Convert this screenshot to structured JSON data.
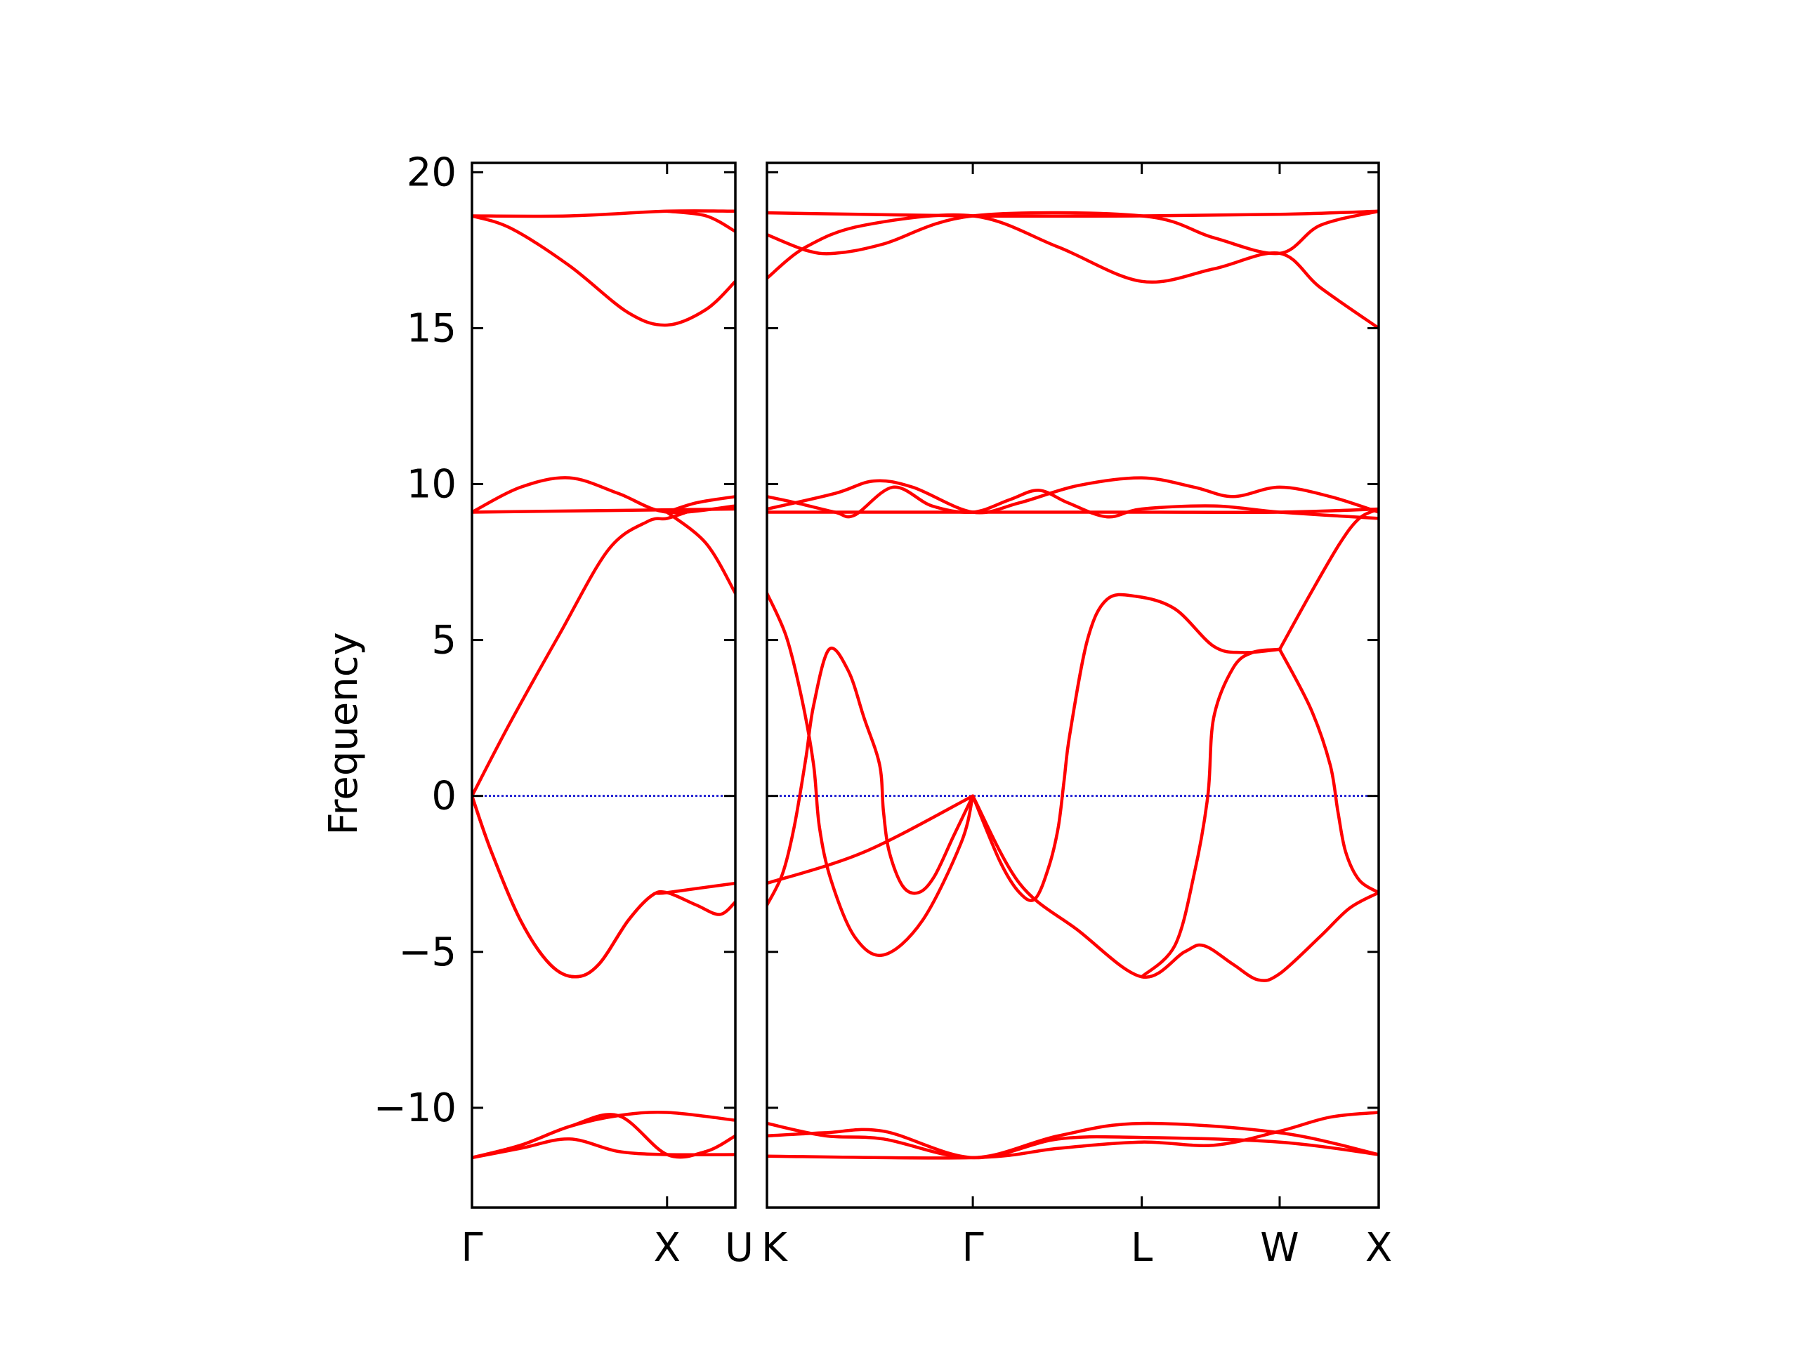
{
  "chart_data": {
    "type": "line",
    "title": "",
    "xlabel": "",
    "ylabel": "Frequency",
    "ylim": [
      -13.2,
      20.3
    ],
    "yticks": [
      -10,
      -5,
      0,
      5,
      10,
      15,
      20
    ],
    "ytick_labels": [
      "−10",
      "−5",
      "0",
      "5",
      "10",
      "15",
      "20"
    ],
    "grid": false,
    "legend": "none",
    "colors": {
      "bands": "#ff0000",
      "zero_line": "#0000cc",
      "axes": "#000000"
    },
    "panels": [
      {
        "name": "gamma-x-u",
        "x_range": [
          0,
          1.35
        ],
        "ticks": [
          {
            "x": 0,
            "label": "Γ"
          },
          {
            "x": 1.0,
            "label": "X"
          },
          {
            "x": 1.35,
            "label": "U"
          }
        ],
        "bands": [
          [
            [
              0,
              -11.6
            ],
            [
              0.25,
              -11.3
            ],
            [
              0.5,
              -11.0
            ],
            [
              0.75,
              -11.4
            ],
            [
              1.0,
              -11.5
            ],
            [
              1.35,
              -11.5
            ]
          ],
          [
            [
              0,
              -11.6
            ],
            [
              0.25,
              -11.2
            ],
            [
              0.5,
              -10.6
            ],
            [
              0.75,
              -10.25
            ],
            [
              1.0,
              -10.15
            ],
            [
              1.35,
              -10.4
            ]
          ],
          [
            [
              0,
              -11.6
            ],
            [
              0.25,
              -11.2
            ],
            [
              0.5,
              -10.6
            ],
            [
              0.75,
              -10.25
            ],
            [
              1.0,
              -11.5
            ],
            [
              1.2,
              -11.4
            ],
            [
              1.35,
              -10.9
            ]
          ],
          [
            [
              0,
              0
            ],
            [
              0.1,
              -1.8
            ],
            [
              0.25,
              -4.0
            ],
            [
              0.4,
              -5.4
            ],
            [
              0.53,
              -5.8
            ],
            [
              0.65,
              -5.4
            ],
            [
              0.8,
              -4.0
            ],
            [
              0.92,
              -3.2
            ],
            [
              1.0,
              -3.1
            ],
            [
              1.35,
              -2.8
            ]
          ],
          [
            [
              0,
              0
            ],
            [
              0.1,
              -1.8
            ],
            [
              0.25,
              -4.0
            ],
            [
              0.4,
              -5.4
            ],
            [
              0.53,
              -5.8
            ],
            [
              0.65,
              -5.4
            ],
            [
              0.8,
              -4.0
            ],
            [
              0.92,
              -3.2
            ],
            [
              1.0,
              -3.1
            ],
            [
              1.15,
              -3.5
            ],
            [
              1.27,
              -3.8
            ],
            [
              1.35,
              -3.4
            ]
          ],
          [
            [
              0,
              0
            ],
            [
              0.2,
              2.4
            ],
            [
              0.45,
              5.2
            ],
            [
              0.7,
              7.9
            ],
            [
              0.9,
              8.8
            ],
            [
              1.0,
              8.9
            ],
            [
              1.1,
              9.1
            ]
          ],
          [
            [
              0,
              9.1
            ],
            [
              1.35,
              9.2
            ]
          ],
          [
            [
              0,
              9.1
            ],
            [
              0.25,
              9.9
            ],
            [
              0.5,
              10.2
            ],
            [
              0.75,
              9.7
            ],
            [
              1.0,
              9.1
            ],
            [
              1.35,
              9.3
            ]
          ],
          [
            [
              1.0,
              9.1
            ],
            [
              1.15,
              9.4
            ],
            [
              1.35,
              9.6
            ]
          ],
          [
            [
              1.0,
              9.1
            ],
            [
              1.2,
              8.1
            ],
            [
              1.35,
              6.5
            ]
          ],
          [
            [
              0,
              18.6
            ],
            [
              0.5,
              18.6
            ],
            [
              1.0,
              18.75
            ],
            [
              1.35,
              18.75
            ]
          ],
          [
            [
              0,
              18.6
            ],
            [
              0.2,
              18.2
            ],
            [
              0.5,
              17.0
            ],
            [
              0.8,
              15.5
            ],
            [
              1.0,
              15.1
            ],
            [
              1.2,
              15.6
            ],
            [
              1.35,
              16.5
            ]
          ],
          [
            [
              1.0,
              18.75
            ],
            [
              1.2,
              18.6
            ],
            [
              1.35,
              18.1
            ]
          ]
        ]
      },
      {
        "name": "k-gamma-l-w-x",
        "x_range": [
          0,
          3.15
        ],
        "ticks": [
          {
            "x": 0,
            "label": "K"
          },
          {
            "x": 1.06,
            "label": "Γ"
          },
          {
            "x": 1.93,
            "label": "L"
          },
          {
            "x": 2.64,
            "label": "W"
          },
          {
            "x": 3.15,
            "label": "X"
          }
        ],
        "bands": [
          [
            [
              0,
              -11.55
            ],
            [
              1.06,
              -11.6
            ],
            [
              1.5,
              -11.3
            ],
            [
              1.93,
              -11.1
            ],
            [
              2.3,
              -11.2
            ],
            [
              2.64,
              -10.75
            ],
            [
              2.9,
              -10.3
            ],
            [
              3.15,
              -10.15
            ]
          ],
          [
            [
              0,
              -10.5
            ],
            [
              0.3,
              -10.9
            ],
            [
              0.6,
              -11.0
            ],
            [
              1.06,
              -11.6
            ],
            [
              1.5,
              -10.9
            ],
            [
              1.93,
              -10.5
            ],
            [
              2.64,
              -10.8
            ],
            [
              3.15,
              -11.5
            ]
          ],
          [
            [
              0,
              -10.9
            ],
            [
              0.3,
              -10.8
            ],
            [
              0.6,
              -10.75
            ],
            [
              1.06,
              -11.6
            ],
            [
              1.5,
              -11.0
            ],
            [
              1.93,
              -10.95
            ],
            [
              2.64,
              -11.1
            ],
            [
              3.15,
              -11.5
            ]
          ],
          [
            [
              0,
              -2.8
            ],
            [
              0.5,
              -1.8
            ],
            [
              1.06,
              0
            ]
          ],
          [
            [
              0,
              -3.5
            ],
            [
              0.08,
              -2.5
            ],
            [
              0.14,
              -1.0
            ],
            [
              0.2,
              1.2
            ],
            [
              0.24,
              2.9
            ],
            [
              0.32,
              4.7
            ],
            [
              0.42,
              4.0
            ],
            [
              0.5,
              2.5
            ],
            [
              0.58,
              1.0
            ],
            [
              0.6,
              -0.5
            ],
            [
              0.63,
              -1.8
            ],
            [
              0.7,
              -2.9
            ],
            [
              0.78,
              -3.1
            ],
            [
              0.86,
              -2.6
            ],
            [
              0.96,
              -1.3
            ],
            [
              1.06,
              0
            ]
          ],
          [
            [
              0,
              6.5
            ],
            [
              0.1,
              5.1
            ],
            [
              0.18,
              3.1
            ],
            [
              0.24,
              1.0
            ],
            [
              0.27,
              -1.0
            ],
            [
              0.33,
              -2.7
            ],
            [
              0.45,
              -4.5
            ],
            [
              0.6,
              -5.1
            ],
            [
              0.8,
              -4.0
            ],
            [
              1.0,
              -1.5
            ],
            [
              1.06,
              0
            ]
          ],
          [
            [
              1.06,
              0
            ],
            [
              1.2,
              -2.1
            ],
            [
              1.3,
              -3.1
            ],
            [
              1.38,
              -3.3
            ],
            [
              1.45,
              -2.3
            ],
            [
              1.5,
              -1.0
            ],
            [
              1.53,
              0.5
            ],
            [
              1.56,
              2.0
            ],
            [
              1.65,
              5.0
            ],
            [
              1.75,
              6.3
            ],
            [
              1.9,
              6.4
            ],
            [
              2.1,
              6.0
            ],
            [
              2.3,
              4.8
            ],
            [
              2.45,
              4.6
            ],
            [
              2.64,
              4.7
            ]
          ],
          [
            [
              1.06,
              0
            ],
            [
              1.3,
              -2.8
            ],
            [
              1.6,
              -4.3
            ],
            [
              1.93,
              -5.8
            ],
            [
              2.15,
              -5.0
            ],
            [
              2.25,
              -4.8
            ],
            [
              2.4,
              -5.4
            ],
            [
              2.53,
              -5.9
            ],
            [
              2.64,
              -5.7
            ],
            [
              2.85,
              -4.5
            ],
            [
              3.0,
              -3.6
            ],
            [
              3.15,
              -3.1
            ]
          ],
          [
            [
              1.93,
              -5.8
            ],
            [
              2.1,
              -4.8
            ],
            [
              2.2,
              -2.5
            ],
            [
              2.27,
              0
            ],
            [
              2.3,
              2.5
            ],
            [
              2.4,
              4.1
            ],
            [
              2.5,
              4.6
            ],
            [
              2.64,
              4.7
            ]
          ],
          [
            [
              2.64,
              4.7
            ],
            [
              2.8,
              2.8
            ],
            [
              2.9,
              1.0
            ],
            [
              2.94,
              -0.5
            ],
            [
              2.98,
              -1.8
            ],
            [
              3.05,
              -2.7
            ],
            [
              3.15,
              -3.1
            ]
          ],
          [
            [
              2.64,
              4.7
            ],
            [
              2.8,
              6.5
            ],
            [
              2.95,
              8.1
            ],
            [
              3.05,
              8.9
            ],
            [
              3.15,
              9.2
            ]
          ],
          [
            [
              0,
              9.1
            ],
            [
              1.06,
              9.1
            ],
            [
              1.93,
              9.1
            ],
            [
              2.64,
              9.1
            ],
            [
              3.15,
              9.2
            ]
          ],
          [
            [
              0,
              9.6
            ],
            [
              0.15,
              9.4
            ],
            [
              0.35,
              9.1
            ],
            [
              0.45,
              9.0
            ],
            [
              0.65,
              9.9
            ],
            [
              0.85,
              9.3
            ],
            [
              1.06,
              9.1
            ],
            [
              1.25,
              9.5
            ],
            [
              1.4,
              9.8
            ],
            [
              1.55,
              9.4
            ],
            [
              1.75,
              8.95
            ],
            [
              1.93,
              9.2
            ],
            [
              2.3,
              9.3
            ],
            [
              2.64,
              9.1
            ],
            [
              3.15,
              8.9
            ]
          ],
          [
            [
              0,
              9.2
            ],
            [
              0.35,
              9.7
            ],
            [
              0.55,
              10.1
            ],
            [
              0.75,
              9.9
            ],
            [
              1.06,
              9.1
            ],
            [
              1.3,
              9.4
            ],
            [
              1.6,
              9.95
            ],
            [
              1.93,
              10.2
            ],
            [
              2.2,
              9.9
            ],
            [
              2.4,
              9.6
            ],
            [
              2.64,
              9.9
            ],
            [
              2.9,
              9.6
            ],
            [
              3.15,
              9.1
            ]
          ],
          [
            [
              0,
              18.7
            ],
            [
              1.06,
              18.6
            ],
            [
              1.93,
              18.6
            ],
            [
              2.64,
              18.65
            ],
            [
              3.15,
              18.75
            ]
          ],
          [
            [
              0,
              16.6
            ],
            [
              0.2,
              17.6
            ],
            [
              0.5,
              18.3
            ],
            [
              1.06,
              18.6
            ],
            [
              1.5,
              17.6
            ],
            [
              1.93,
              16.5
            ],
            [
              2.3,
              16.9
            ],
            [
              2.64,
              17.4
            ],
            [
              2.85,
              16.3
            ],
            [
              3.15,
              15.0
            ]
          ],
          [
            [
              0,
              18.0
            ],
            [
              0.2,
              17.5
            ],
            [
              0.35,
              17.4
            ],
            [
              0.6,
              17.7
            ],
            [
              1.06,
              18.6
            ],
            [
              1.93,
              18.6
            ],
            [
              2.3,
              17.9
            ],
            [
              2.64,
              17.4
            ],
            [
              2.85,
              18.3
            ],
            [
              3.15,
              18.75
            ]
          ]
        ]
      }
    ]
  }
}
